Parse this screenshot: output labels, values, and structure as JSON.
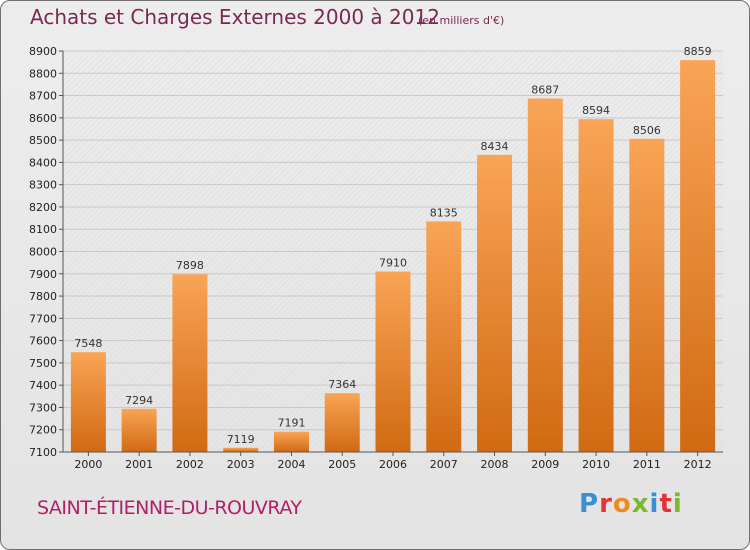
{
  "header": {
    "title": "Achats et Charges Externes 2000 à 2012",
    "unit_note": "(en milliers d'€)"
  },
  "footer": {
    "city": "SAINT-ÉTIENNE-DU-ROUVRAY",
    "logo_letters": [
      "P",
      "r",
      "o",
      "x",
      "i",
      "t",
      "i"
    ]
  },
  "chart_data": {
    "type": "bar",
    "title": "Achats et Charges Externes 2000 à 2012",
    "subtitle": "(en milliers d'€)",
    "categories": [
      "2000",
      "2001",
      "2002",
      "2003",
      "2004",
      "2005",
      "2006",
      "2007",
      "2008",
      "2009",
      "2010",
      "2011",
      "2012"
    ],
    "values": [
      7548,
      7294,
      7898,
      7119,
      7191,
      7364,
      7910,
      8135,
      8434,
      8687,
      8594,
      8506,
      8859
    ],
    "ylim": [
      7100,
      8900
    ],
    "yticks": [
      7100,
      7200,
      7300,
      7400,
      7500,
      7600,
      7700,
      7800,
      7900,
      8000,
      8100,
      8200,
      8300,
      8400,
      8500,
      8600,
      8700,
      8800,
      8900
    ],
    "grid": true,
    "bar_color_top": "#f9a456",
    "bar_color_bottom": "#d16a12"
  }
}
